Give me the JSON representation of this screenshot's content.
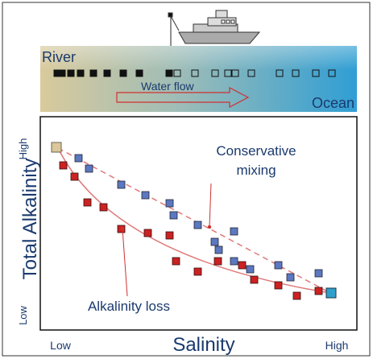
{
  "banner": {
    "left_label": "River",
    "flow_label": "Water flow",
    "right_label": "Ocean"
  },
  "plot": {
    "y_high": "High",
    "y_title": "Total Alkalinity",
    "y_low": "Low",
    "x_low": "Low",
    "x_title": "Salinity",
    "x_high": "High",
    "annotations": {
      "conservative": [
        "Conservative",
        "mixing"
      ],
      "loss": "Alkalinity loss"
    }
  }
}
